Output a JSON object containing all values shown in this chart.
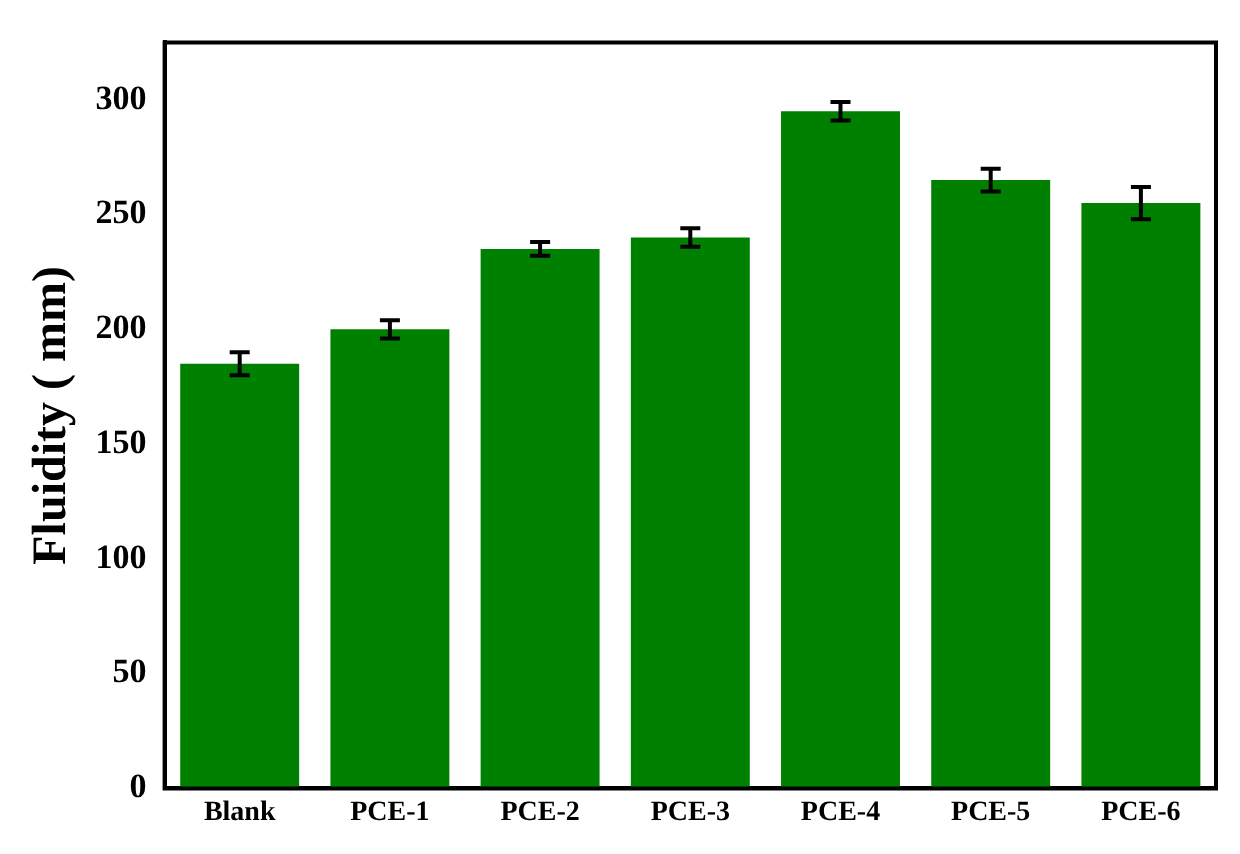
{
  "chart_data": {
    "type": "bar",
    "ylabel": "Fluidity ( mm)",
    "categories": [
      "Blank",
      "PCE-1",
      "PCE-2",
      "PCE-3",
      "PCE-4",
      "PCE-5",
      "PCE-6"
    ],
    "values": [
      185,
      200,
      235,
      240,
      295,
      265,
      255
    ],
    "errors": [
      5,
      4,
      3,
      4,
      4,
      5,
      7
    ],
    "color": "#008000",
    "ylim": [
      0,
      325
    ],
    "yticks": [
      0,
      50,
      100,
      150,
      200,
      250,
      300
    ],
    "grid": false
  }
}
